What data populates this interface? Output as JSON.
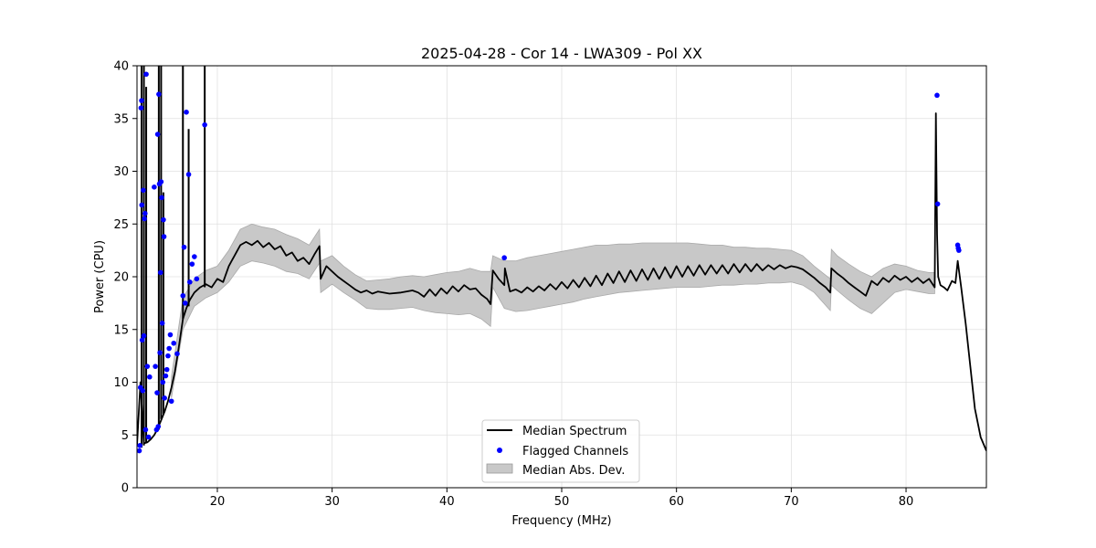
{
  "chart_data": {
    "type": "line",
    "title": "2025-04-28 - Cor 14 - LWA309 - Pol XX",
    "xlabel": "Frequency (MHz)",
    "ylabel": "Power (CPU)",
    "xlim": [
      13,
      87
    ],
    "ylim": [
      0,
      40
    ],
    "xticks": [
      20,
      30,
      40,
      50,
      60,
      70,
      80
    ],
    "yticks": [
      0,
      5,
      10,
      15,
      20,
      25,
      30,
      35,
      40
    ],
    "grid": true,
    "legend_position": "bottom-center",
    "legend": [
      {
        "label": "Median Spectrum",
        "kind": "line",
        "color": "#000000"
      },
      {
        "label": "Flagged Channels",
        "kind": "dot",
        "color": "#0000ff"
      },
      {
        "label": "Median Abs. Dev.",
        "kind": "patch",
        "color": "#c8c8c8"
      }
    ],
    "series": [
      {
        "name": "Median Spectrum",
        "color": "#000000",
        "x": [
          13.0,
          13.3,
          13.6,
          13.9,
          14.2,
          14.5,
          14.8,
          15.1,
          15.4,
          15.7,
          16.0,
          16.3,
          16.6,
          17.0,
          17.3,
          17.6,
          18.0,
          18.5,
          19.0,
          19.5,
          20.0,
          20.5,
          21.0,
          21.5,
          22.0,
          22.5,
          23.0,
          23.5,
          24.0,
          24.5,
          25.0,
          25.5,
          26.0,
          26.5,
          27.0,
          27.5,
          28.0,
          28.5,
          28.9,
          29.0,
          29.5,
          30.0,
          30.5,
          31.0,
          31.5,
          32.0,
          32.5,
          33.0,
          33.5,
          34.0,
          35.0,
          36.0,
          37.0,
          37.5,
          38.0,
          38.5,
          39.0,
          39.5,
          40.0,
          40.5,
          41.0,
          41.5,
          42.0,
          42.5,
          43.0,
          43.5,
          43.8,
          44.0,
          44.5,
          45.0,
          45.05,
          45.5,
          46.0,
          46.5,
          47.0,
          47.5,
          48.0,
          48.5,
          49.0,
          49.5,
          50.0,
          50.5,
          51.0,
          51.5,
          52.0,
          52.5,
          53.0,
          53.5,
          54.0,
          54.5,
          55.0,
          55.5,
          56.0,
          56.5,
          57.0,
          57.5,
          58.0,
          58.5,
          59.0,
          59.5,
          60.0,
          60.5,
          61.0,
          61.5,
          62.0,
          62.5,
          63.0,
          63.5,
          64.0,
          64.5,
          65.0,
          65.5,
          66.0,
          66.5,
          67.0,
          67.5,
          68.0,
          68.5,
          69.0,
          69.5,
          70.0,
          70.5,
          71.0,
          71.5,
          72.0,
          72.5,
          73.0,
          73.4,
          73.5,
          74.0,
          74.5,
          75.0,
          75.5,
          76.0,
          76.5,
          77.0,
          77.5,
          78.0,
          78.5,
          79.0,
          79.5,
          80.0,
          80.5,
          81.0,
          81.5,
          82.0,
          82.5,
          82.6,
          82.7,
          82.8,
          83.0,
          83.3,
          83.6,
          84.0,
          84.3,
          84.5,
          84.8,
          85.2,
          85.6,
          86.0,
          86.5,
          87.0
        ],
        "values": [
          4.0,
          10.0,
          4.2,
          4.3,
          4.6,
          5.0,
          5.6,
          6.4,
          7.2,
          8.2,
          9.5,
          11.0,
          13.0,
          16.0,
          17.0,
          17.8,
          18.5,
          19.0,
          19.3,
          19.0,
          19.8,
          19.5,
          21.0,
          22.0,
          23.0,
          23.3,
          23.0,
          23.4,
          22.8,
          23.2,
          22.6,
          22.9,
          22.0,
          22.3,
          21.5,
          21.8,
          21.2,
          22.2,
          22.9,
          19.8,
          21.0,
          20.5,
          20.0,
          19.6,
          19.2,
          18.8,
          18.5,
          18.7,
          18.4,
          18.6,
          18.4,
          18.5,
          18.7,
          18.5,
          18.1,
          18.8,
          18.2,
          18.9,
          18.4,
          19.1,
          18.6,
          19.2,
          18.8,
          18.9,
          18.3,
          17.9,
          17.4,
          20.6,
          19.8,
          19.2,
          20.8,
          18.6,
          18.8,
          18.5,
          19.0,
          18.6,
          19.1,
          18.7,
          19.3,
          18.8,
          19.5,
          18.9,
          19.7,
          19.0,
          19.9,
          19.1,
          20.1,
          19.2,
          20.3,
          19.4,
          20.5,
          19.5,
          20.6,
          19.6,
          20.7,
          19.7,
          20.8,
          19.8,
          20.9,
          19.9,
          21.0,
          20.0,
          21.0,
          20.1,
          21.1,
          20.2,
          21.1,
          20.3,
          21.1,
          20.3,
          21.2,
          20.4,
          21.2,
          20.5,
          21.2,
          20.6,
          21.1,
          20.7,
          21.1,
          20.8,
          21.0,
          20.9,
          20.7,
          20.3,
          19.9,
          19.4,
          19.0,
          18.5,
          20.8,
          20.3,
          19.9,
          19.4,
          19.0,
          18.6,
          18.2,
          19.6,
          19.2,
          19.9,
          19.5,
          20.1,
          19.7,
          20.0,
          19.5,
          19.9,
          19.4,
          19.8,
          19.0,
          35.5,
          24.0,
          20.0,
          19.2,
          19.0,
          18.7,
          19.6,
          19.4,
          21.5,
          19.0,
          15.5,
          11.5,
          7.5,
          4.8,
          3.5
        ]
      }
    ],
    "mad_band": {
      "name": "Median Abs. Dev.",
      "color": "#c8c8c8",
      "x": [
        16.0,
        17.0,
        18.0,
        19.0,
        20.0,
        21.0,
        22.0,
        23.0,
        24.0,
        25.0,
        26.0,
        27.0,
        28.0,
        28.9,
        29.0,
        30.0,
        31.0,
        32.0,
        33.0,
        34.0,
        35.0,
        36.0,
        37.0,
        38.0,
        39.0,
        40.0,
        41.0,
        42.0,
        43.0,
        43.8,
        44.0,
        45.0,
        46.0,
        47.0,
        48.0,
        49.0,
        50.0,
        51.0,
        52.0,
        53.0,
        54.0,
        55.0,
        56.0,
        57.0,
        58.0,
        59.0,
        60.0,
        61.0,
        62.0,
        63.0,
        64.0,
        65.0,
        66.0,
        67.0,
        68.0,
        69.0,
        70.0,
        71.0,
        72.0,
        73.4,
        73.5,
        74.0,
        75.0,
        76.0,
        77.0,
        78.0,
        79.0,
        80.0,
        81.0,
        82.0,
        82.5
      ],
      "lower": [
        8.5,
        15.0,
        17.2,
        18.0,
        18.5,
        19.5,
        21.0,
        21.5,
        21.3,
        21.0,
        20.5,
        20.3,
        19.8,
        21.3,
        18.5,
        19.3,
        18.5,
        17.8,
        17.0,
        16.9,
        16.9,
        17.0,
        17.1,
        16.8,
        16.6,
        16.5,
        16.4,
        16.5,
        16.0,
        15.3,
        19.0,
        17.0,
        16.7,
        16.8,
        17.0,
        17.2,
        17.4,
        17.6,
        17.9,
        18.1,
        18.3,
        18.5,
        18.6,
        18.7,
        18.8,
        18.9,
        19.0,
        19.0,
        19.0,
        19.1,
        19.2,
        19.2,
        19.3,
        19.3,
        19.4,
        19.4,
        19.5,
        19.2,
        18.5,
        16.8,
        19.2,
        18.7,
        17.8,
        17.0,
        16.5,
        17.5,
        18.5,
        18.8,
        18.6,
        18.4,
        18.4
      ],
      "upper": [
        10.5,
        18.0,
        19.8,
        20.6,
        21.0,
        22.5,
        24.5,
        25.0,
        24.7,
        24.5,
        24.0,
        23.6,
        23.0,
        24.5,
        21.5,
        22.0,
        21.0,
        20.2,
        19.6,
        19.7,
        19.8,
        20.0,
        20.1,
        20.0,
        20.2,
        20.4,
        20.5,
        20.8,
        20.5,
        20.5,
        22.0,
        21.5,
        21.5,
        21.8,
        22.0,
        22.2,
        22.4,
        22.6,
        22.8,
        23.0,
        23.0,
        23.1,
        23.1,
        23.2,
        23.2,
        23.2,
        23.2,
        23.2,
        23.1,
        23.0,
        23.0,
        22.8,
        22.8,
        22.7,
        22.7,
        22.6,
        22.5,
        22.0,
        21.0,
        19.8,
        22.6,
        22.0,
        21.2,
        20.5,
        20.0,
        20.8,
        21.2,
        21.0,
        20.6,
        20.4,
        20.4
      ]
    },
    "rfi_spikes": [
      {
        "x": 13.4,
        "low": 3.8,
        "high": 40.0
      },
      {
        "x": 13.6,
        "low": 4.0,
        "high": 40.0
      },
      {
        "x": 13.8,
        "low": 4.2,
        "high": 38.0
      },
      {
        "x": 14.9,
        "low": 5.5,
        "high": 40.0
      },
      {
        "x": 15.1,
        "low": 6.5,
        "high": 40.0
      },
      {
        "x": 15.3,
        "low": 7.0,
        "high": 28.0
      },
      {
        "x": 17.0,
        "low": 16.0,
        "high": 40.0
      },
      {
        "x": 17.5,
        "low": 17.2,
        "high": 34.0
      },
      {
        "x": 18.9,
        "low": 19.0,
        "high": 40.0
      }
    ],
    "flagged_points": {
      "name": "Flagged Channels",
      "color": "#0000ff",
      "x": [
        13.2,
        13.25,
        13.3,
        13.35,
        13.4,
        13.42,
        13.45,
        13.5,
        13.55,
        13.6,
        13.65,
        13.7,
        13.75,
        13.8,
        13.9,
        14.0,
        14.1,
        14.5,
        14.6,
        14.7,
        14.75,
        14.8,
        14.85,
        14.9,
        14.95,
        15.0,
        15.05,
        15.1,
        15.15,
        15.2,
        15.25,
        15.3,
        15.35,
        15.4,
        15.5,
        15.6,
        15.7,
        15.8,
        15.9,
        16.0,
        16.2,
        16.5,
        17.0,
        17.1,
        17.2,
        17.3,
        17.5,
        17.6,
        17.8,
        18.0,
        18.2,
        18.9,
        45.0,
        82.7,
        82.75,
        84.5,
        84.55,
        84.6
      ],
      "values": [
        3.5,
        4.0,
        9.5,
        36.0,
        36.7,
        26.8,
        14.0,
        9.2,
        28.2,
        14.4,
        25.5,
        26.0,
        5.5,
        39.2,
        11.5,
        4.8,
        10.5,
        28.5,
        11.5,
        5.5,
        9.0,
        33.5,
        5.8,
        37.3,
        28.8,
        12.8,
        20.4,
        29.0,
        27.5,
        15.6,
        10.0,
        25.4,
        23.8,
        8.5,
        10.6,
        11.2,
        12.5,
        13.2,
        14.5,
        8.2,
        13.7,
        12.7,
        18.2,
        22.8,
        17.5,
        35.6,
        29.7,
        19.5,
        21.2,
        21.9,
        19.8,
        34.4,
        21.8,
        37.2,
        26.9,
        23.0,
        22.7,
        22.5
      ]
    }
  }
}
